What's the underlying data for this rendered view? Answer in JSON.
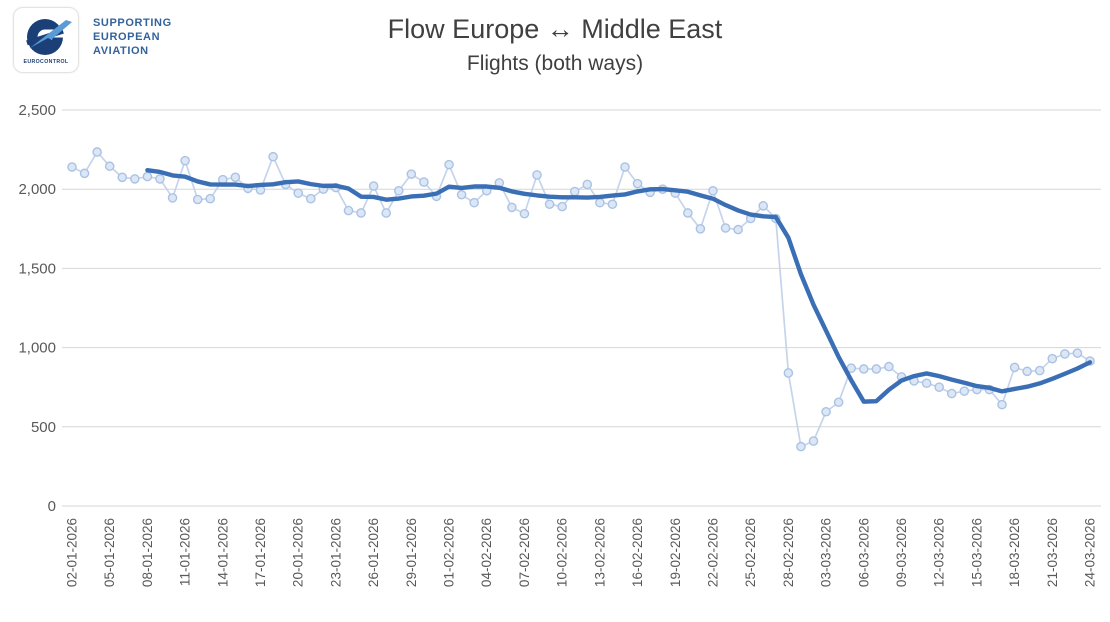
{
  "logo": {
    "brand": "EUROCONTROL",
    "tagline": "SUPPORTING\nEUROPEAN\nAVIATION"
  },
  "header": {
    "title": "Flow Europe ↔ Middle East",
    "subtitle": "Flights (both ways)"
  },
  "colors": {
    "daily_line": "#c5d4eb",
    "marker_fill": "#dce6f4",
    "marker_stroke": "#a9c3e5",
    "average_line": "#3a6eb5",
    "gridline": "#d6d6d6",
    "axis_text": "#595959",
    "title_text": "#404040",
    "logo_navy": "#1b3f77",
    "logo_blue": "#5b9bd5"
  },
  "chart_data": {
    "type": "line",
    "title": "Flow Europe ↔ Middle East",
    "subtitle": "Flights (both ways)",
    "ylabel": "",
    "xlabel": "",
    "ylim": [
      0,
      2500
    ],
    "yticks": [
      0,
      500,
      1000,
      1500,
      2000,
      2500
    ],
    "ytick_labels": [
      "0",
      "500",
      "1,000",
      "1,500",
      "2,000",
      "2,500"
    ],
    "grid": true,
    "legend": false,
    "x_start_label": "02-01-2026",
    "x_tick_interval_days": 3,
    "x_tick_labels": [
      "02-01-2026",
      "05-01-2026",
      "08-01-2026",
      "11-01-2026",
      "14-01-2026",
      "17-01-2026",
      "20-01-2026",
      "23-01-2026",
      "26-01-2026",
      "29-01-2026",
      "01-02-2026",
      "04-02-2026",
      "07-02-2026",
      "10-02-2026",
      "13-02-2026",
      "16-02-2026",
      "19-02-2026",
      "22-02-2026",
      "25-02-2026",
      "28-02-2026",
      "03-03-2026",
      "06-03-2026",
      "09-03-2026",
      "12-03-2026",
      "15-03-2026",
      "18-03-2026",
      "21-03-2026",
      "24-03-2026"
    ],
    "series": [
      {
        "name": "daily-flights",
        "style": "thin-with-markers",
        "start_index": 0,
        "values": [
          2140,
          2100,
          2235,
          2145,
          2075,
          2065,
          2080,
          2065,
          1945,
          2180,
          1935,
          1940,
          2060,
          2075,
          2005,
          1995,
          2205,
          2030,
          1975,
          1940,
          2000,
          2010,
          1865,
          1850,
          2020,
          1850,
          1990,
          2095,
          2045,
          1955,
          2155,
          1965,
          1915,
          1990,
          2040,
          1885,
          1845,
          2090,
          1905,
          1890,
          1985,
          2030,
          1915,
          1905,
          2140,
          2035,
          1980,
          2000,
          1975,
          1850,
          1750,
          1990,
          1755,
          1745,
          1815,
          1895,
          1815,
          840,
          375,
          410,
          595,
          655,
          870,
          865,
          865,
          880,
          815,
          790,
          775,
          750,
          710,
          725,
          735,
          735,
          640,
          875,
          850,
          855,
          930,
          960,
          965,
          915
        ]
      },
      {
        "name": "7-day-moving-average",
        "style": "thick-smooth",
        "start_index": 6,
        "values": [
          2120,
          2109,
          2087,
          2079,
          2049,
          2030,
          2029,
          2029,
          2020,
          2027,
          2031,
          2044,
          2049,
          2032,
          2021,
          2022,
          2004,
          1953,
          1951,
          1934,
          1941,
          1954,
          1959,
          1972,
          2016,
          2008,
          2017,
          2017,
          2009,
          1986,
          1971,
          1961,
          1953,
          1949,
          1949,
          1947,
          1951,
          1960,
          1967,
          1986,
          1999,
          2001,
          1993,
          1984,
          1961,
          1940,
          1900,
          1866,
          1840,
          1829,
          1824,
          1694,
          1463,
          1271,
          1106,
          941,
          794,
          659,
          662,
          734,
          792,
          820,
          837,
          820,
          798,
          778,
          757,
          746,
          724,
          739,
          753,
          774,
          803,
          835,
          868,
          907
        ]
      }
    ]
  },
  "layout_meta": {
    "n_points": 82
  }
}
